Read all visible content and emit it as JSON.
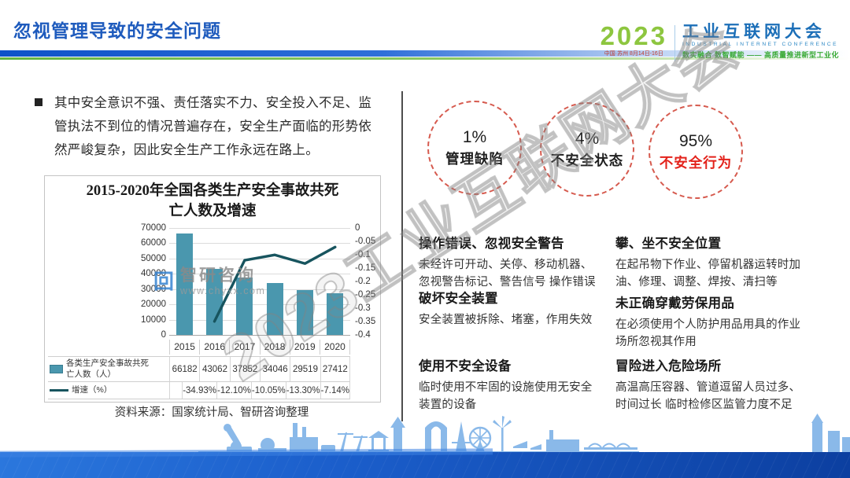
{
  "slide": {
    "title": "忽视管理导致的安全问题"
  },
  "logo": {
    "year": "2023",
    "venue_date": "中国·苏州  8月14日-16日",
    "name_cn": "工业互联网大会",
    "name_en": "INDUSTRIAL INTERNET CONFERENCE",
    "tagline": "数实融合  数智赋能 —— 高质量推进新型工业化"
  },
  "intro": {
    "bullet_text": "其中安全意识不强、责任落实不力、安全投入不足、监\n管执法不到位的情况普遍存在，安全生产面临的形势依\n然严峻复杂，因此安全生产工作永远在路上。"
  },
  "chart_data": {
    "type": "bar",
    "title": "2015-2020年全国各类生产安全事故共死\n亡人数及增速",
    "categories": [
      "2015",
      "2016",
      "2017",
      "2018",
      "2019",
      "2020"
    ],
    "series": [
      {
        "name": "各类生产安全事故共死\n亡人数（人）",
        "type": "bar",
        "axis": "left",
        "color": "#4a97ae",
        "values": [
          66182,
          43062,
          37852,
          34046,
          29519,
          27412
        ]
      },
      {
        "name": "增速（%）",
        "type": "line",
        "axis": "right",
        "color": "#17545e",
        "values": [
          null,
          -0.3493,
          -0.121,
          -0.1005,
          -0.133,
          -0.0714
        ],
        "labels": [
          "",
          "-34.93%",
          "-12.10%",
          "-10.05%",
          "-13.30%",
          "-7.14%"
        ]
      }
    ],
    "left_axis": {
      "min": 0,
      "max": 70000,
      "ticks": [
        "70000",
        "60000",
        "50000",
        "40000",
        "30000",
        "20000",
        "10000",
        "0"
      ]
    },
    "right_axis": {
      "min": -0.4,
      "max": 0,
      "ticks": [
        "0",
        "-0.05",
        "-0.1",
        "-0.15",
        "-0.2",
        "-0.25",
        "-0.3",
        "-0.35",
        "-0.4"
      ]
    },
    "grid": true,
    "legend_position": "table-left",
    "chart_watermark": {
      "name": "智研咨询",
      "url": "www.chyxx.com"
    }
  },
  "source_note": "资料来源：国家统计局、智研咨询整理",
  "stats_circles": [
    {
      "percent": "1%",
      "label": "管理缺陷"
    },
    {
      "percent": "4%",
      "label": "不安全状态"
    },
    {
      "percent": "95%",
      "label": "不安全行为"
    }
  ],
  "risk_items": {
    "col1": [
      {
        "heading": "操作错误、忽视安全警告",
        "body": "未经许可开动、关停、移动机器、\n忽视警告标记、警告信号 操作错误"
      },
      {
        "heading": "破坏安全装置",
        "body": "安全装置被拆除、堵塞，作用失效"
      },
      {
        "heading": "使用不安全设备",
        "body": "临时使用不牢固的设施使用无安全\n装置的设备"
      }
    ],
    "col2": [
      {
        "heading": "攀、坐不安全位置",
        "body": "在起吊物下作业、停留机器运转时加\n油、修理、调整、焊按、清扫等"
      },
      {
        "heading": "未正确穿戴劳保用品",
        "body": "在必须使用个人防护用品用具的作业\n场所忽视其作用"
      },
      {
        "heading": "冒险进入危险场所",
        "body": "高温高压容器、管道逗留人员过多、\n时间过长 临时检修区监管力度不足"
      }
    ]
  },
  "watermark_text": "2023工业互联网大会",
  "cwm_logo_glyph": "回",
  "colors": {
    "title_blue": "#1e5bbd",
    "bar_teal": "#4a97ae",
    "line_teal": "#17545e",
    "circle_red": "#d65a4e",
    "highlight_red": "#e3221b",
    "logo_green": "#8dc63f",
    "logo_blue": "#1c6fb8",
    "band_blue": "#0c3fa0"
  }
}
